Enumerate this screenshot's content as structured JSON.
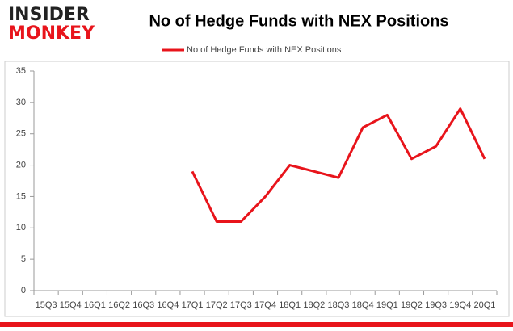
{
  "logo": {
    "line1": "INSIDER",
    "line2": "MONKEY"
  },
  "chart_data": {
    "type": "line",
    "title": "No of Hedge Funds with NEX Positions",
    "categories": [
      "15Q3",
      "15Q4",
      "16Q1",
      "16Q2",
      "16Q3",
      "16Q4",
      "17Q1",
      "17Q2",
      "17Q3",
      "17Q4",
      "18Q1",
      "18Q2",
      "18Q3",
      "18Q4",
      "19Q1",
      "19Q2",
      "19Q3",
      "19Q4",
      "20Q1"
    ],
    "series": [
      {
        "name": "No of Hedge Funds with NEX Positions",
        "color": "#e8141b",
        "values": [
          null,
          null,
          null,
          null,
          null,
          null,
          19,
          11,
          11,
          15,
          20,
          19,
          18,
          26,
          28,
          21,
          23,
          29,
          21
        ]
      }
    ],
    "ylim": [
      0,
      35
    ],
    "yticks": [
      0,
      5,
      10,
      15,
      20,
      25,
      30,
      35
    ],
    "grid": false,
    "legend": "top"
  }
}
